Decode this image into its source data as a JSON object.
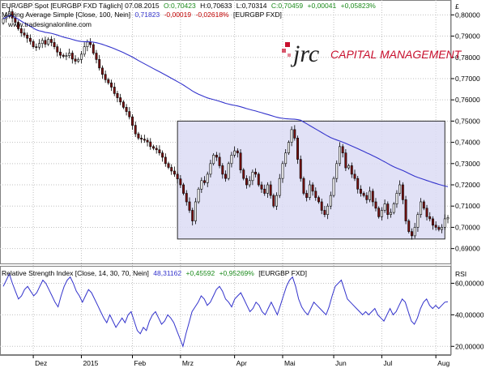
{
  "price_header": {
    "name": "EUR/GBP Spot [EURGBP FXD  Täglich] 07.08.2015",
    "open": "O:0,70423",
    "high": "H:0,70633",
    "low": "L:0,70314",
    "close": "C:0,70459",
    "change": "+0,00041",
    "change_pct": "+0,05823%"
  },
  "ma_header": {
    "name": "Moving Average Simple [Close, 100, Nein]",
    "value": "0,71823",
    "change": "-0,00019",
    "change_pct": "-0,02618%",
    "symbol": "[EURGBP FXD]"
  },
  "rsi_header": {
    "name": "Relative Strength Index [Close, 14, 30, 70, Nein]",
    "value": "48,31162",
    "change": "+0,45592",
    "change_pct": "+0,95269%",
    "symbol": "[EURGBP FXD]"
  },
  "watermark": "www.tradesignalonline.com",
  "logo": {
    "mark": "jrc",
    "text": "CAPITAL MANAGEMENT"
  },
  "currency_symbol": "£",
  "rsi_axis_title": "RSI",
  "colors": {
    "up": "#ffffff",
    "down": "#7a1010",
    "ma": "#3333cc",
    "rsi": "#3333cc",
    "box_fill": "#dcdcf4",
    "box_stroke": "#2a2a2a",
    "logo": "#c8102e",
    "grid": "#c0c0c0"
  },
  "chart_data": [
    {
      "type": "candlestick",
      "title": "EUR/GBP Spot [EURGBP FXD  Täglich] 07.08.2015",
      "ylim": [
        0.683,
        0.807
      ],
      "y_ticks": [
        "0,80000",
        "0,79000",
        "0,78000",
        "0,77000",
        "0,76000",
        "0,75000",
        "0,74000",
        "0,73000",
        "0,72000",
        "0,71000",
        "0,70000",
        "0,69000"
      ],
      "x_ticks": [
        {
          "label": "Dez",
          "i": 10
        },
        {
          "label": "2015",
          "i": 26
        },
        {
          "label": "Feb",
          "i": 43
        },
        {
          "label": "Mrz",
          "i": 59
        },
        {
          "label": "Apr",
          "i": 77
        },
        {
          "label": "Mai",
          "i": 93
        },
        {
          "label": "Jun",
          "i": 110
        },
        {
          "label": "Jul",
          "i": 126
        },
        {
          "label": "Aug",
          "i": 144
        }
      ],
      "closes": [
        0.7982,
        0.7995,
        0.8015,
        0.7985,
        0.7965,
        0.7935,
        0.7915,
        0.7905,
        0.789,
        0.7875,
        0.785,
        0.7848,
        0.7865,
        0.788,
        0.7862,
        0.7885,
        0.787,
        0.785,
        0.7825,
        0.781,
        0.7805,
        0.7808,
        0.782,
        0.7792,
        0.7782,
        0.779,
        0.7815,
        0.785,
        0.7872,
        0.786,
        0.782,
        0.779,
        0.775,
        0.772,
        0.7695,
        0.768,
        0.766,
        0.763,
        0.761,
        0.759,
        0.7565,
        0.7545,
        0.752,
        0.748,
        0.744,
        0.742,
        0.7415,
        0.741,
        0.7402,
        0.738,
        0.7372,
        0.7365,
        0.735,
        0.733,
        0.73,
        0.7282,
        0.7265,
        0.725,
        0.7228,
        0.72,
        0.716,
        0.712,
        0.708,
        0.703,
        0.712,
        0.718,
        0.722,
        0.721,
        0.725,
        0.73,
        0.734,
        0.733,
        0.729,
        0.725,
        0.723,
        0.73,
        0.734,
        0.736,
        0.735,
        0.727,
        0.723,
        0.72,
        0.722,
        0.726,
        0.725,
        0.72,
        0.718,
        0.716,
        0.72,
        0.715,
        0.71,
        0.715,
        0.723,
        0.73,
        0.735,
        0.74,
        0.746,
        0.742,
        0.732,
        0.723,
        0.716,
        0.714,
        0.72,
        0.717,
        0.714,
        0.712,
        0.708,
        0.706,
        0.71,
        0.715,
        0.723,
        0.73,
        0.738,
        0.735,
        0.728,
        0.729,
        0.725,
        0.723,
        0.718,
        0.716,
        0.715,
        0.713,
        0.717,
        0.712,
        0.709,
        0.705,
        0.708,
        0.711,
        0.706,
        0.707,
        0.711,
        0.716,
        0.72,
        0.713,
        0.703,
        0.698,
        0.696,
        0.7,
        0.706,
        0.712,
        0.709,
        0.705,
        0.704,
        0.701,
        0.7,
        0.699,
        0.7,
        0.704,
        0.7046
      ],
      "ma_window": 100,
      "box": {
        "i0": 58,
        "i1": 147,
        "y_top": 0.75,
        "y_bottom": 0.6945
      },
      "series": [
        {
          "name": "Moving Average Simple [Close, 100, Nein]",
          "last": 0.71823
        }
      ]
    },
    {
      "type": "line",
      "title": "Relative Strength Index [Close, 14, 30, 70, Nein]",
      "ylim": [
        15,
        70
      ],
      "y_ticks": [
        "60,00000",
        "40,00000",
        "20,00000"
      ],
      "y_tick_values": [
        60,
        40,
        20
      ],
      "series": [
        {
          "name": "Relative Strength Index [Close, 14, 30, 70, Nein]",
          "values": [
            58,
            62,
            66,
            60,
            55,
            50,
            52,
            56,
            58,
            55,
            52,
            54,
            58,
            62,
            60,
            56,
            52,
            48,
            45,
            52,
            58,
            62,
            64,
            60,
            55,
            52,
            48,
            52,
            56,
            54,
            50,
            46,
            42,
            38,
            35,
            40,
            36,
            32,
            35,
            38,
            35,
            40,
            42,
            36,
            30,
            28,
            32,
            30,
            36,
            40,
            42,
            38,
            34,
            36,
            40,
            38,
            35,
            30,
            25,
            20,
            28,
            35,
            42,
            45,
            48,
            52,
            50,
            46,
            48,
            52,
            56,
            58,
            55,
            50,
            48,
            45,
            50,
            52,
            54,
            50,
            46,
            42,
            44,
            48,
            46,
            42,
            40,
            44,
            48,
            44,
            40,
            46,
            52,
            58,
            62,
            64,
            58,
            50,
            45,
            42,
            40,
            44,
            48,
            46,
            44,
            42,
            40,
            45,
            52,
            58,
            60,
            62,
            56,
            50,
            48,
            46,
            44,
            42,
            40,
            42,
            40,
            42,
            44,
            40,
            38,
            36,
            40,
            44,
            40,
            42,
            46,
            50,
            48,
            42,
            36,
            34,
            38,
            44,
            48,
            50,
            46,
            44,
            46,
            44,
            46,
            48,
            48.3
          ]
        }
      ]
    }
  ]
}
